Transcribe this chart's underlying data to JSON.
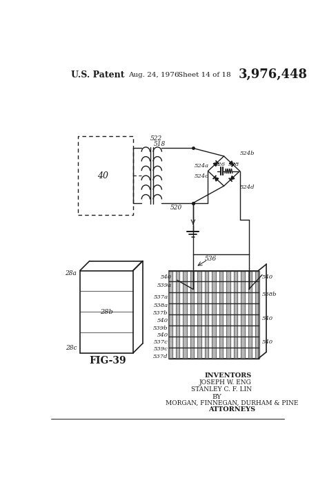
{
  "title_left": "U.S. Patent",
  "title_date": "Aug. 24, 1976",
  "title_sheet": "Sheet 14 of 18",
  "title_patent": "3,976,448",
  "fig_label": "FIG-39",
  "bg_color": "#ffffff",
  "line_color": "#1a1a1a"
}
